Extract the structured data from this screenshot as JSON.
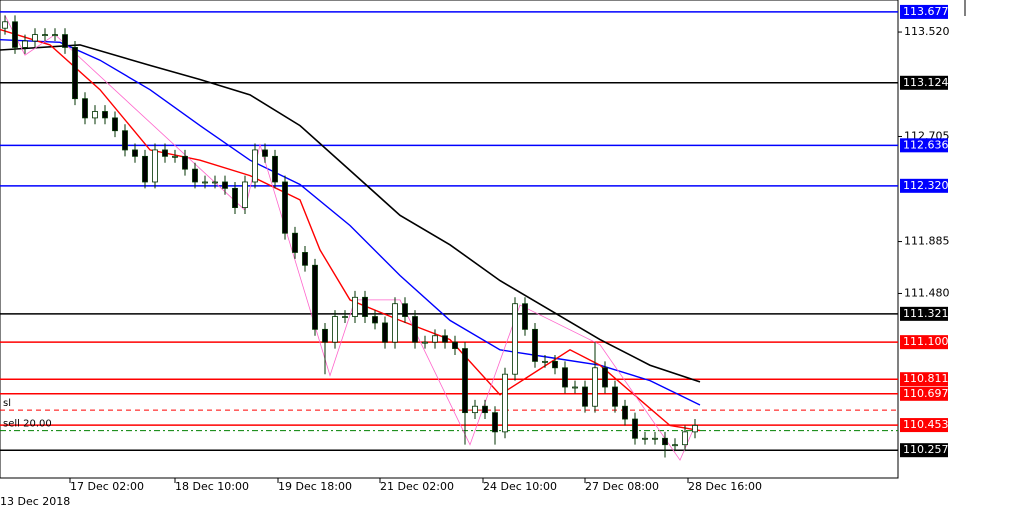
{
  "chart_data": {
    "type": "candlestick",
    "date_label": "13 Dec 2018",
    "xlim": [
      -0.5,
      89.3
    ],
    "ylim": [
      110.04,
      113.77
    ],
    "xticks": [
      {
        "value": 6.5,
        "label": "17 Dec 02:00"
      },
      {
        "value": 17,
        "label": "18 Dec 10:00"
      },
      {
        "value": 27.3,
        "label": "19 Dec 18:00"
      },
      {
        "value": 37.5,
        "label": "21 Dec 02:00"
      },
      {
        "value": 47.8,
        "label": "24 Dec 10:00"
      },
      {
        "value": 58,
        "label": "27 Dec 08:00"
      },
      {
        "value": 68.3,
        "label": "28 Dec 16:00"
      }
    ],
    "yticks": [
      {
        "value": 113.52,
        "label": "113.520"
      },
      112.705,
      111.885,
      {
        "value": 111.48,
        "label": "111.480"
      }
    ],
    "up_color": "#ffffff",
    "down_color": "#000000",
    "wick_color": "#003300",
    "open": [
      113.55,
      113.6,
      113.4,
      113.45,
      113.5,
      113.5,
      113.5,
      113.4,
      113.0,
      112.85,
      112.9,
      112.85,
      112.75,
      112.6,
      112.55,
      112.35,
      112.6,
      112.55,
      112.55,
      112.45,
      112.35,
      112.35,
      112.35,
      112.3,
      112.15,
      112.35,
      112.6,
      112.55,
      112.35,
      111.95,
      111.8,
      111.7,
      111.2,
      111.1,
      111.3,
      111.3,
      111.45,
      111.3,
      111.25,
      111.1,
      111.4,
      111.3,
      111.1,
      111.1,
      111.15,
      111.1,
      111.05,
      110.55,
      110.6,
      110.55,
      110.4,
      110.85,
      111.4,
      111.2,
      110.95,
      110.95,
      110.9,
      110.75,
      110.75,
      110.6,
      110.9,
      110.75,
      110.6,
      110.5,
      110.35,
      110.35,
      110.35,
      110.3,
      110.3,
      110.4
    ],
    "high": [
      113.65,
      113.65,
      113.5,
      113.55,
      113.55,
      113.55,
      113.55,
      113.45,
      113.05,
      112.95,
      112.95,
      112.9,
      112.8,
      112.65,
      112.6,
      112.65,
      112.65,
      112.6,
      112.6,
      112.5,
      112.4,
      112.4,
      112.4,
      112.35,
      112.4,
      112.65,
      112.65,
      112.6,
      112.4,
      112.0,
      111.85,
      111.75,
      111.25,
      111.35,
      111.35,
      111.5,
      111.5,
      111.35,
      111.3,
      111.45,
      111.45,
      111.35,
      111.15,
      111.2,
      111.2,
      111.15,
      111.1,
      110.65,
      110.65,
      110.6,
      110.9,
      111.45,
      111.45,
      111.25,
      111.0,
      111.0,
      110.95,
      110.8,
      110.8,
      111.1,
      110.95,
      110.8,
      110.65,
      110.55,
      110.4,
      110.4,
      110.4,
      110.35,
      110.45,
      110.5
    ],
    "low": [
      113.5,
      113.35,
      113.35,
      113.4,
      113.45,
      113.45,
      113.35,
      112.95,
      112.8,
      112.8,
      112.8,
      112.7,
      112.55,
      112.5,
      112.3,
      112.3,
      112.5,
      112.5,
      112.4,
      112.3,
      112.3,
      112.3,
      112.25,
      112.1,
      112.1,
      112.3,
      112.5,
      112.3,
      111.9,
      111.75,
      111.65,
      111.15,
      110.85,
      111.05,
      111.25,
      111.25,
      111.25,
      111.2,
      111.05,
      111.05,
      111.25,
      111.05,
      111.05,
      111.05,
      111.05,
      111.0,
      110.3,
      110.5,
      110.5,
      110.3,
      110.35,
      110.8,
      111.15,
      110.9,
      110.9,
      110.85,
      110.7,
      110.7,
      110.55,
      110.55,
      110.7,
      110.55,
      110.45,
      110.3,
      110.3,
      110.3,
      110.2,
      110.25,
      110.25,
      110.35
    ],
    "close": [
      113.6,
      113.4,
      113.45,
      113.5,
      113.5,
      113.5,
      113.4,
      113.0,
      112.85,
      112.9,
      112.85,
      112.75,
      112.6,
      112.55,
      112.35,
      112.6,
      112.55,
      112.55,
      112.45,
      112.35,
      112.35,
      112.35,
      112.3,
      112.15,
      112.35,
      112.6,
      112.55,
      112.35,
      111.95,
      111.8,
      111.7,
      111.2,
      111.1,
      111.3,
      111.3,
      111.45,
      111.3,
      111.25,
      111.1,
      111.4,
      111.3,
      111.1,
      111.1,
      111.15,
      111.1,
      111.05,
      110.55,
      110.6,
      110.55,
      110.4,
      110.85,
      111.4,
      111.2,
      110.95,
      110.95,
      110.9,
      110.75,
      110.75,
      110.6,
      110.9,
      110.75,
      110.6,
      110.5,
      110.35,
      110.35,
      110.35,
      110.3,
      110.3,
      110.4,
      110.45
    ],
    "lines": [
      {
        "color": "#000000",
        "width": 1.6,
        "x": [
          -0.5,
          7.5,
          14.5,
          19.5,
          24.5,
          29.5,
          34.5,
          39.5,
          44.5,
          49.5,
          54.5,
          59.5,
          64.5,
          69.5
        ],
        "values": [
          113.38,
          113.42,
          113.26,
          113.15,
          113.03,
          112.79,
          112.44,
          112.09,
          111.86,
          111.58,
          111.35,
          111.12,
          110.92,
          110.79
        ]
      },
      {
        "color": "#0000ff",
        "width": 1.4,
        "x": [
          -0.5,
          5.5,
          9.5,
          14.5,
          19.5,
          24.5,
          29.5,
          34.5,
          39.5,
          44.5,
          49.5,
          54.5,
          59.5,
          64.5,
          69.5
        ],
        "values": [
          113.46,
          113.44,
          113.3,
          113.07,
          112.79,
          112.52,
          112.33,
          112.01,
          111.62,
          111.27,
          111.04,
          110.98,
          110.92,
          110.8,
          110.61
        ]
      },
      {
        "color": "#ff0000",
        "width": 1.4,
        "x": [
          -0.5,
          4.5,
          9.5,
          14.5,
          19.5,
          24.5,
          29.5,
          31.5,
          34.5,
          39.5,
          44.5,
          49.5,
          52.5,
          56.5,
          59.5,
          63.5,
          66.5,
          69.5
        ],
        "values": [
          113.54,
          113.42,
          113.07,
          112.6,
          112.52,
          112.4,
          112.21,
          111.82,
          111.43,
          111.27,
          111.12,
          110.69,
          110.84,
          111.04,
          110.92,
          110.65,
          110.45,
          110.41
        ]
      },
      {
        "color": "#ff66cc",
        "width": 0.8,
        "x": [
          0,
          2,
          5,
          24,
          25.5,
          32.5,
          35,
          39.5,
          46.5,
          51.5,
          59.5,
          67.5,
          69
        ],
        "values": [
          113.65,
          113.34,
          113.5,
          112.13,
          112.64,
          110.84,
          111.43,
          111.43,
          110.3,
          111.39,
          111.08,
          110.18,
          110.45
        ]
      }
    ],
    "levels": [
      {
        "value": 113.677,
        "label": "113.677",
        "color": "#0000ff"
      },
      {
        "value": 113.124,
        "label": "113.124",
        "color": "#000000"
      },
      {
        "value": 112.636,
        "label": "112.636",
        "color": "#0000ff"
      },
      {
        "value": 112.32,
        "label": "112.320",
        "color": "#0000ff"
      },
      {
        "value": 111.321,
        "label": "111.321",
        "color": "#000000"
      },
      {
        "value": 111.1,
        "label": "111.100",
        "color": "#ff0000"
      },
      {
        "value": 110.811,
        "label": "110.811",
        "color": "#ff0000"
      },
      {
        "value": 110.697,
        "label": "110.697",
        "color": "#ff0000"
      },
      {
        "value": 110.453,
        "label": "110.453",
        "color": "#ff0000"
      },
      {
        "value": 110.257,
        "label": "110.257",
        "color": "#000000"
      }
    ],
    "orders": [
      {
        "value": 110.57,
        "label": "sl",
        "color": "#ff0000"
      },
      {
        "value": 110.41,
        "label": "sell 20.00",
        "color": "#008000"
      }
    ]
  }
}
